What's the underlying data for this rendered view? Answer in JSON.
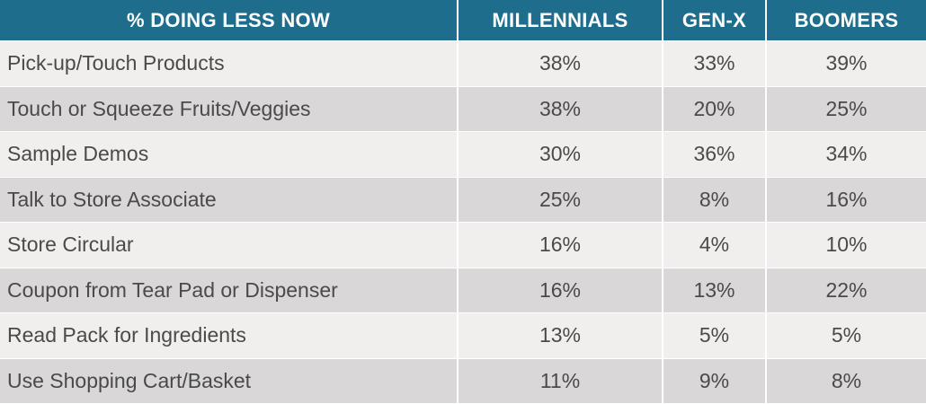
{
  "chart_data": {
    "type": "table",
    "columns": [
      "% DOING LESS NOW",
      "MILLENNIALS",
      "GEN-X",
      "BOOMERS"
    ],
    "rows": [
      {
        "label": "Pick-up/Touch Products",
        "values": [
          "38%",
          "33%",
          "39%"
        ]
      },
      {
        "label": "Touch or Squeeze Fruits/Veggies",
        "values": [
          "38%",
          "20%",
          "25%"
        ]
      },
      {
        "label": "Sample Demos",
        "values": [
          "30%",
          "36%",
          "34%"
        ]
      },
      {
        "label": "Talk to Store Associate",
        "values": [
          "25%",
          "8%",
          "16%"
        ]
      },
      {
        "label": "Store Circular",
        "values": [
          "16%",
          "4%",
          "10%"
        ]
      },
      {
        "label": "Coupon from Tear Pad or Dispenser",
        "values": [
          "16%",
          "13%",
          "22%"
        ]
      },
      {
        "label": "Read Pack for Ingredients",
        "values": [
          "13%",
          "5%",
          "5%"
        ]
      },
      {
        "label": "Use Shopping Cart/Basket",
        "values": [
          "11%",
          "9%",
          "8%"
        ]
      }
    ]
  },
  "colors": {
    "header_bg": "#1f6d8c",
    "header_text": "#ffffff",
    "row_light": "#f1efee",
    "row_dark": "#d9d7d7",
    "body_text": "#4a4a4a"
  }
}
